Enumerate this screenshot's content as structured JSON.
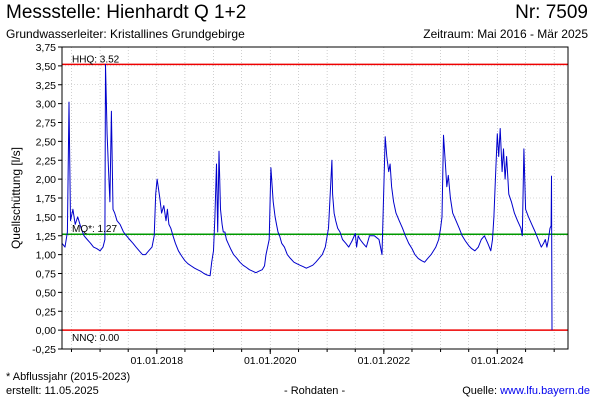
{
  "header": {
    "title": "Messstelle: Hienhardt Q 1+2",
    "number": "Nr: 7509",
    "subtitle": "Grundwasserleiter: Kristallines Grundgebirge",
    "period": "Zeitraum: Mai 2016 - Mär 2025"
  },
  "footer": {
    "note": "* Abflussjahr (2015-2023)",
    "created": "erstellt:  11.05.2025",
    "raw": "- Rohdaten -",
    "source_label": "Quelle: ",
    "source_link": "www.lfu.bayern.de"
  },
  "colors": {
    "series": "#0000cc",
    "hhq": "#ee0000",
    "mq": "#009900",
    "nnq": "#ee0000",
    "grid": "#b0b0b0"
  },
  "chart_data": {
    "type": "line",
    "ylabel": "Quellschüttung [l/s]",
    "xlabel": "",
    "xlim": [
      "2016-05-01",
      "2025-03-31"
    ],
    "ylim": [
      -0.25,
      3.75
    ],
    "yticks": [
      -0.25,
      0.0,
      0.25,
      0.5,
      0.75,
      1.0,
      1.25,
      1.5,
      1.75,
      2.0,
      2.25,
      2.5,
      2.75,
      3.0,
      3.25,
      3.5,
      3.75
    ],
    "ytick_labels": [
      "-0,25",
      "0,00",
      "0,25",
      "0,50",
      "0,75",
      "1,00",
      "1,25",
      "1,50",
      "1,75",
      "2,00",
      "2,25",
      "2,50",
      "2,75",
      "3,00",
      "3,25",
      "3,50",
      "3,75"
    ],
    "xticks": [
      "2018-01-01",
      "2020-01-01",
      "2022-01-01",
      "2024-01-01"
    ],
    "xtick_labels": [
      "01.01.2018",
      "01.01.2020",
      "01.01.2022",
      "01.01.2024"
    ],
    "grid": true,
    "reference_lines": [
      {
        "label": "HHQ: 3.52",
        "value": 3.52,
        "color": "#ee0000"
      },
      {
        "label": "MQ*: 1.27",
        "value": 1.27,
        "color": "#009900"
      },
      {
        "label": "NNQ: 0.00",
        "value": 0.0,
        "color": "#ee0000"
      }
    ],
    "series": [
      {
        "x": [
          "2016-05-01",
          "2016-05-20",
          "2016-06-05",
          "2016-06-15",
          "2016-06-25",
          "2016-07-10",
          "2016-07-25",
          "2016-08-10",
          "2016-09-01",
          "2016-09-20",
          "2016-10-10",
          "2016-11-01",
          "2016-11-20",
          "2016-12-10",
          "2017-01-01",
          "2017-01-20",
          "2017-02-01",
          "2017-02-05",
          "2017-02-15",
          "2017-02-25",
          "2017-03-05",
          "2017-03-15",
          "2017-03-25",
          "2017-04-05",
          "2017-04-20",
          "2017-05-10",
          "2017-06-01",
          "2017-06-20",
          "2017-07-10",
          "2017-08-01",
          "2017-08-20",
          "2017-09-10",
          "2017-10-01",
          "2017-10-20",
          "2017-11-10",
          "2017-12-01",
          "2017-12-15",
          "2017-12-25",
          "2018-01-03",
          "2018-01-10",
          "2018-01-20",
          "2018-02-01",
          "2018-02-15",
          "2018-03-01",
          "2018-03-10",
          "2018-03-20",
          "2018-04-01",
          "2018-04-15",
          "2018-05-01",
          "2018-05-20",
          "2018-06-10",
          "2018-07-01",
          "2018-07-20",
          "2018-08-10",
          "2018-09-01",
          "2018-09-20",
          "2018-10-10",
          "2018-11-01",
          "2018-11-20",
          "2018-12-10",
          "2018-12-20",
          "2019-01-01",
          "2019-01-10",
          "2019-01-20",
          "2019-01-28",
          "2019-02-05",
          "2019-02-15",
          "2019-02-25",
          "2019-03-05",
          "2019-03-15",
          "2019-03-25",
          "2019-04-05",
          "2019-04-20",
          "2019-05-10",
          "2019-06-01",
          "2019-06-20",
          "2019-07-10",
          "2019-08-01",
          "2019-08-20",
          "2019-09-10",
          "2019-10-01",
          "2019-10-20",
          "2019-11-10",
          "2019-11-25",
          "2019-12-05",
          "2019-12-15",
          "2019-12-25",
          "2020-01-05",
          "2020-01-20",
          "2020-02-01",
          "2020-02-10",
          "2020-02-20",
          "2020-03-01",
          "2020-03-15",
          "2020-04-01",
          "2020-04-20",
          "2020-05-10",
          "2020-06-01",
          "2020-06-20",
          "2020-07-10",
          "2020-08-01",
          "2020-08-20",
          "2020-09-10",
          "2020-10-01",
          "2020-10-20",
          "2020-11-10",
          "2020-12-01",
          "2020-12-20",
          "2021-01-10",
          "2021-02-01",
          "2021-02-05",
          "2021-02-15",
          "2021-02-25",
          "2021-03-10",
          "2021-03-25",
          "2021-04-10",
          "2021-05-01",
          "2021-05-20",
          "2021-06-10",
          "2021-07-01",
          "2021-07-10",
          "2021-07-20",
          "2021-08-01",
          "2021-08-20",
          "2021-09-10",
          "2021-10-01",
          "2021-11-01",
          "2021-12-01",
          "2021-12-20",
          "2022-01-10",
          "2022-01-20",
          "2022-02-01",
          "2022-02-10",
          "2022-02-20",
          "2022-03-05",
          "2022-03-20",
          "2022-04-10",
          "2022-05-01",
          "2022-05-20",
          "2022-06-10",
          "2022-07-01",
          "2022-07-20",
          "2022-08-10",
          "2022-09-01",
          "2022-09-20",
          "2022-10-10",
          "2022-11-01",
          "2022-12-01",
          "2022-12-20",
          "2023-01-01",
          "2023-01-10",
          "2023-01-20",
          "2023-02-01",
          "2023-02-10",
          "2023-02-20",
          "2023-03-05",
          "2023-03-20",
          "2023-04-10",
          "2023-05-01",
          "2023-05-20",
          "2023-06-10",
          "2023-07-01",
          "2023-07-20",
          "2023-08-10",
          "2023-09-01",
          "2023-09-20",
          "2023-10-10",
          "2023-11-01",
          "2023-11-20",
          "2023-12-01",
          "2023-12-10",
          "2023-12-20",
          "2024-01-01",
          "2024-01-10",
          "2024-01-20",
          "2024-02-01",
          "2024-02-10",
          "2024-02-20",
          "2024-03-01",
          "2024-03-15",
          "2024-04-01",
          "2024-04-20",
          "2024-05-10",
          "2024-06-01",
          "2024-06-10",
          "2024-06-20",
          "2024-07-01",
          "2024-07-20",
          "2024-08-10",
          "2024-09-01",
          "2024-09-20",
          "2024-10-10",
          "2024-10-25",
          "2024-11-05",
          "2024-11-15",
          "2024-11-25",
          "2024-12-05",
          "2024-12-12",
          "2024-12-15",
          "2024-12-18"
        ],
        "values": [
          1.15,
          1.1,
          1.3,
          3.02,
          1.45,
          1.6,
          1.4,
          1.5,
          1.35,
          1.25,
          1.2,
          1.15,
          1.1,
          1.08,
          1.05,
          1.1,
          1.2,
          3.52,
          2.6,
          2.1,
          1.7,
          2.9,
          1.6,
          1.55,
          1.45,
          1.4,
          1.3,
          1.25,
          1.2,
          1.15,
          1.1,
          1.05,
          1.0,
          1.0,
          1.05,
          1.1,
          1.25,
          1.8,
          2.0,
          1.9,
          1.75,
          1.55,
          1.65,
          1.45,
          1.6,
          1.4,
          1.35,
          1.25,
          1.15,
          1.05,
          0.98,
          0.92,
          0.88,
          0.85,
          0.82,
          0.8,
          0.78,
          0.75,
          0.73,
          0.72,
          0.9,
          1.05,
          1.5,
          2.2,
          1.3,
          2.37,
          1.6,
          1.4,
          1.3,
          1.3,
          1.2,
          1.15,
          1.08,
          1.0,
          0.95,
          0.9,
          0.86,
          0.83,
          0.8,
          0.78,
          0.76,
          0.78,
          0.8,
          0.85,
          1.0,
          1.1,
          1.2,
          2.15,
          1.7,
          1.5,
          1.4,
          1.3,
          1.25,
          1.15,
          1.1,
          1.0,
          0.95,
          0.9,
          0.88,
          0.86,
          0.84,
          0.82,
          0.84,
          0.86,
          0.9,
          0.95,
          1.0,
          1.1,
          1.35,
          2.25,
          1.8,
          1.55,
          1.45,
          1.35,
          1.3,
          1.2,
          1.15,
          1.1,
          1.18,
          1.28,
          1.1,
          1.25,
          1.2,
          1.15,
          1.1,
          1.25,
          1.25,
          1.2,
          1.0,
          2.56,
          2.3,
          2.1,
          2.2,
          1.9,
          1.7,
          1.55,
          1.45,
          1.35,
          1.25,
          1.15,
          1.08,
          1.0,
          0.95,
          0.92,
          0.9,
          0.95,
          1.0,
          1.1,
          1.2,
          1.35,
          1.5,
          2.58,
          2.2,
          1.9,
          2.05,
          1.75,
          1.55,
          1.45,
          1.35,
          1.25,
          1.18,
          1.12,
          1.08,
          1.05,
          1.1,
          1.2,
          1.25,
          1.15,
          1.05,
          1.2,
          1.5,
          2.0,
          2.6,
          2.3,
          2.67,
          2.1,
          2.4,
          2.0,
          2.3,
          1.8,
          1.7,
          1.55,
          1.45,
          1.35,
          1.25,
          2.4,
          1.6,
          1.5,
          1.4,
          1.3,
          1.2,
          1.1,
          1.15,
          1.2,
          1.1,
          1.2,
          1.35,
          1.38,
          2.04,
          0.0
        ]
      }
    ]
  }
}
